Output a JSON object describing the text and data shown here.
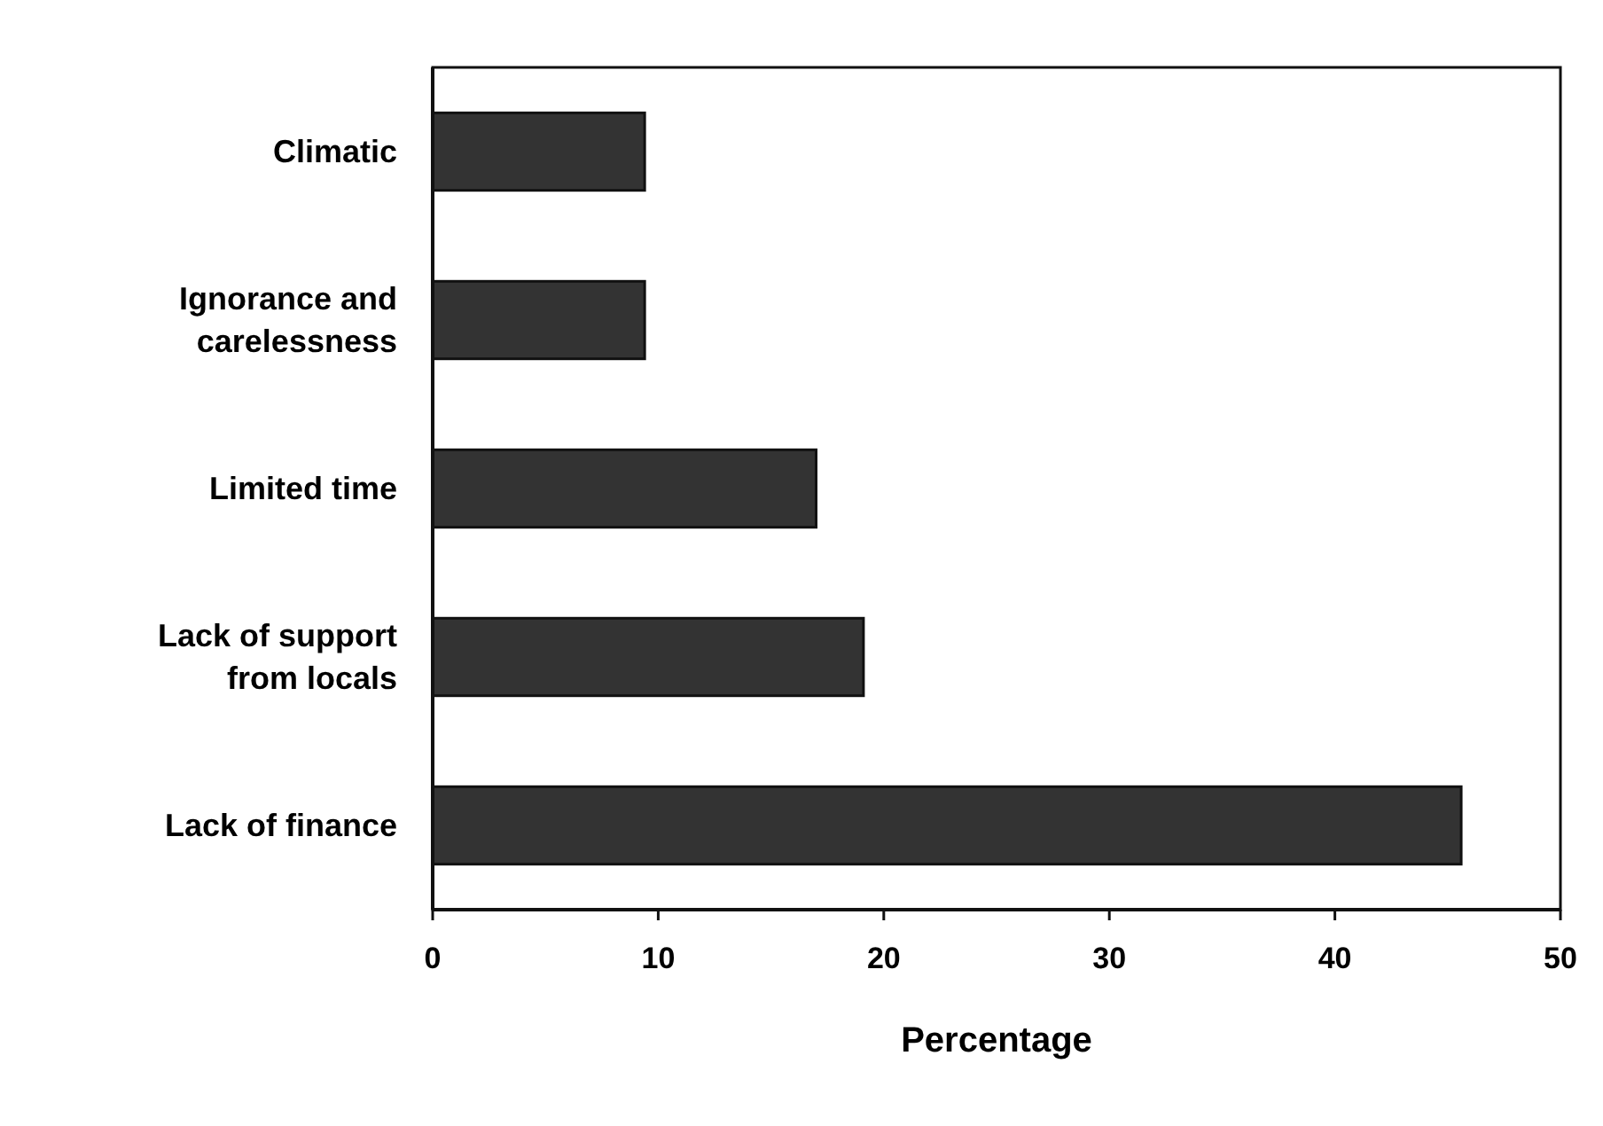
{
  "chart_data": {
    "type": "bar",
    "orientation": "horizontal",
    "categories": [
      "Climatic",
      "Ignorance and carelessness",
      "Limited time",
      "Lack of support from locals",
      "Lack of finance"
    ],
    "values": [
      9.4,
      9.4,
      17,
      19.1,
      45.6
    ],
    "color": "#333333",
    "xlim": [
      0,
      50
    ],
    "xticks": [
      0,
      10,
      20,
      30,
      40,
      50
    ],
    "xlabel": "Percentage",
    "grid": false
  }
}
